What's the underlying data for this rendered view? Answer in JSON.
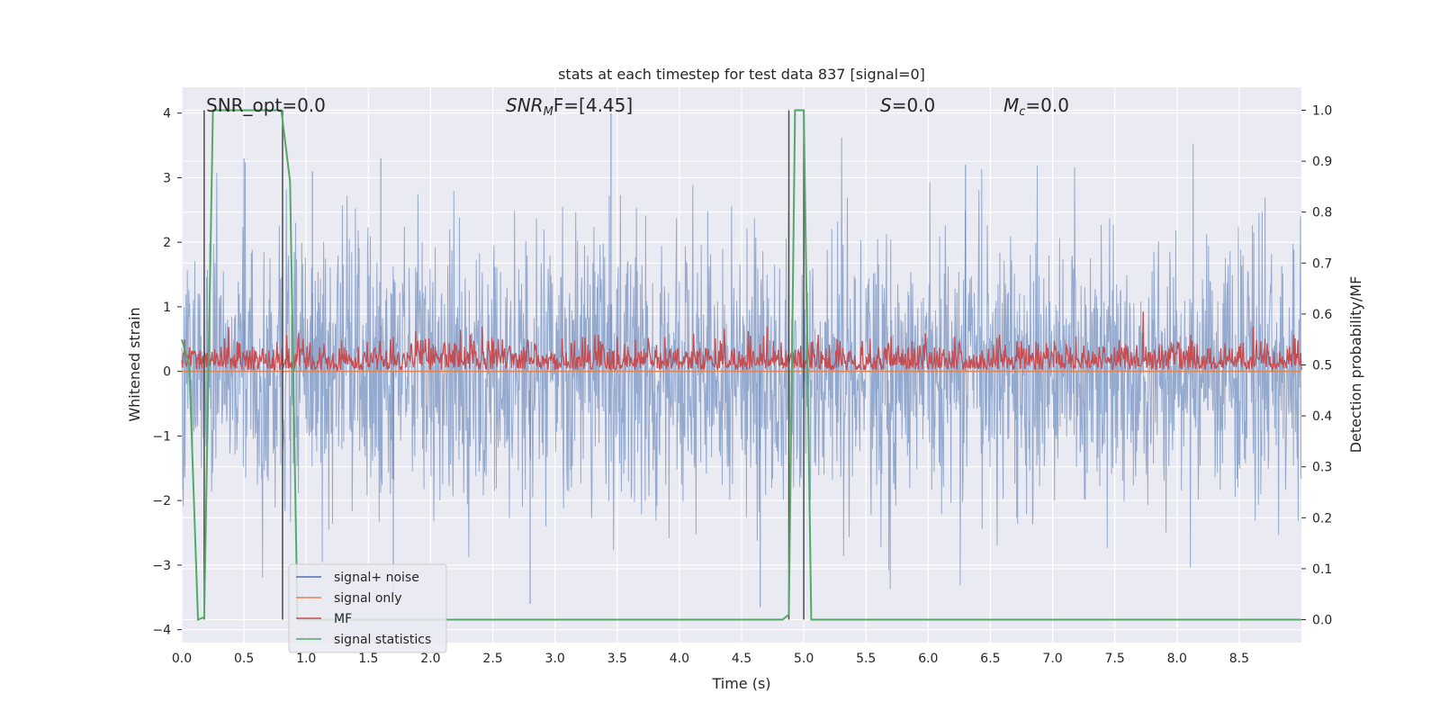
{
  "chart_data": {
    "type": "line",
    "title": "stats at each timestep for test data 837 [signal=0]",
    "xlabel": "Time (s)",
    "ylabel": "Whitened strain",
    "y2label": "Detection probability/MF",
    "xlim": [
      0.0,
      9.0
    ],
    "ylim": [
      -4.2,
      4.4
    ],
    "y2lim": [
      -0.045,
      1.045
    ],
    "x_ticks": [
      "0.0",
      "0.5",
      "1.0",
      "1.5",
      "2.0",
      "2.5",
      "3.0",
      "3.5",
      "4.0",
      "4.5",
      "5.0",
      "5.5",
      "6.0",
      "6.5",
      "7.0",
      "7.5",
      "8.0",
      "8.5"
    ],
    "y_ticks": [
      "4",
      "3",
      "2",
      "1",
      "0",
      "−1",
      "−2",
      "−3",
      "−4"
    ],
    "y2_ticks": [
      "1.0",
      "0.9",
      "0.8",
      "0.7",
      "0.6",
      "0.5",
      "0.4",
      "0.3",
      "0.2",
      "0.1",
      "0.0"
    ],
    "grid": true,
    "background": "#eaeaf2",
    "legend_position": "lower-left",
    "annotations": [
      {
        "text": "SNR_opt=0.0"
      },
      {
        "base": "SNR",
        "sub": "M",
        "tail": "F=[4.45]"
      },
      {
        "base": "S",
        "tail": "=0.0"
      },
      {
        "base": "M",
        "sub": "c",
        "tail": "=0.0"
      }
    ],
    "vertical_markers_s": [
      0.18,
      0.81,
      4.88,
      5.0
    ],
    "series": [
      {
        "name": "signal+ noise",
        "color": "#4c72b0",
        "axis": "left",
        "description": "dense whitened noise, roughly between -3.7 and 4.0",
        "peaks": [
          {
            "x": 0.5,
            "y": 3.3
          },
          {
            "x": 1.05,
            "y": 3.1
          },
          {
            "x": 1.6,
            "y": 3.3
          },
          {
            "x": 3.45,
            "y": 4.0
          },
          {
            "x": 6.3,
            "y": 3.2
          },
          {
            "x": 2.8,
            "y": -3.6
          },
          {
            "x": 4.65,
            "y": -3.65
          },
          {
            "x": 1.7,
            "y": -3.5
          }
        ]
      },
      {
        "name": "signal only",
        "color": "#dd8452",
        "axis": "left",
        "x": [
          0.0,
          9.0
        ],
        "y": [
          0.0,
          0.0
        ]
      },
      {
        "name": "MF",
        "color": "#c44e52",
        "axis": "right",
        "description": "matched-filter output fluctuating between about 0.49 and 0.58",
        "baseline": 0.49,
        "top": 0.575,
        "max": {
          "x": 7.73,
          "y": 0.605
        }
      },
      {
        "name": "signal statistics",
        "color": "#55a868",
        "axis": "right",
        "x": [
          0.0,
          0.06,
          0.13,
          0.18,
          0.25,
          0.33,
          0.4,
          0.5,
          0.6,
          0.7,
          0.8,
          0.87,
          0.93,
          1.0,
          1.5,
          2.0,
          3.0,
          4.0,
          4.83,
          4.88,
          4.93,
          5.0,
          5.06,
          5.5,
          6.0,
          7.0,
          8.0,
          9.0
        ],
        "y": [
          0.55,
          0.5,
          0.0,
          0.005,
          1.0,
          1.0,
          1.0,
          1.0,
          1.0,
          1.0,
          1.0,
          0.86,
          0.0,
          0.0,
          0.0,
          0.0,
          0.0,
          0.0,
          0.0,
          0.01,
          1.0,
          1.0,
          0.0,
          0.0,
          0.0,
          0.0,
          0.0,
          0.0
        ]
      }
    ]
  }
}
